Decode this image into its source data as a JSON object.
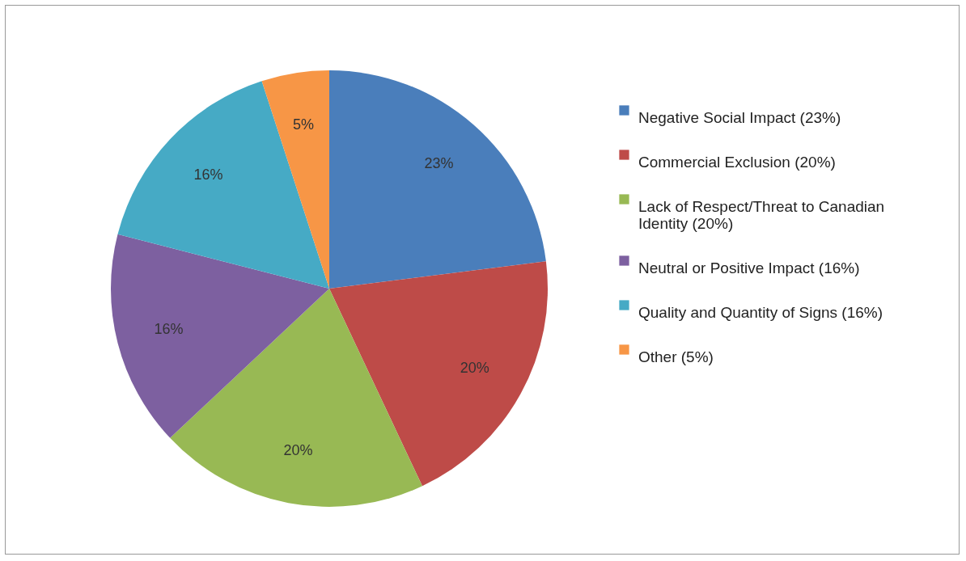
{
  "chart_data": {
    "type": "pie",
    "categories": [
      "Negative Social Impact (23%)",
      "Commercial Exclusion (20%)",
      "Lack of Respect/Threat to Canadian Identity (20%)",
      "Neutral or Positive Impact (16%)",
      "Quality and Quantity of Signs (16%)",
      "Other (5%)"
    ],
    "values": [
      23,
      20,
      20,
      16,
      16,
      5
    ],
    "colors": [
      "#4a7ebb",
      "#be4b48",
      "#98b954",
      "#7d60a0",
      "#46aac5",
      "#f79646"
    ],
    "value_labels": [
      "23%",
      "20%",
      "20%",
      "16%",
      "16%",
      "5%"
    ],
    "legend": "right"
  }
}
